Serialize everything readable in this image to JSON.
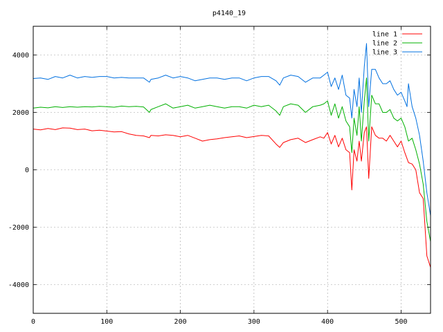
{
  "chart_data": {
    "type": "line",
    "title": "p4140_19",
    "xlabel": "",
    "ylabel": "",
    "xlim": [
      0,
      540
    ],
    "ylim": [
      -5000,
      5000
    ],
    "xticks": [
      0,
      100,
      200,
      300,
      400,
      500
    ],
    "yticks": [
      -4000,
      -2000,
      0,
      2000,
      4000
    ],
    "grid": true,
    "legend": "top-right",
    "series": [
      {
        "name": "line 1",
        "color": "#ff0000",
        "x": [
          0,
          10,
          20,
          30,
          40,
          50,
          60,
          70,
          80,
          90,
          100,
          110,
          120,
          130,
          140,
          150,
          158,
          160,
          170,
          180,
          190,
          200,
          210,
          220,
          230,
          240,
          250,
          260,
          270,
          280,
          290,
          300,
          310,
          320,
          330,
          335,
          340,
          350,
          360,
          370,
          380,
          390,
          395,
          400,
          405,
          410,
          415,
          420,
          425,
          430,
          433,
          436,
          440,
          443,
          446,
          450,
          453,
          456,
          460,
          465,
          470,
          475,
          480,
          485,
          490,
          495,
          500,
          505,
          510,
          515,
          520,
          525,
          530,
          535,
          540
        ],
        "y": [
          1420,
          1390,
          1440,
          1400,
          1460,
          1450,
          1400,
          1420,
          1360,
          1380,
          1350,
          1320,
          1330,
          1250,
          1200,
          1180,
          1120,
          1200,
          1180,
          1220,
          1200,
          1150,
          1200,
          1100,
          1000,
          1050,
          1080,
          1120,
          1150,
          1180,
          1120,
          1160,
          1200,
          1180,
          900,
          780,
          950,
          1050,
          1100,
          950,
          1050,
          1150,
          1100,
          1300,
          900,
          1200,
          800,
          1100,
          700,
          600,
          -700,
          700,
          300,
          1000,
          300,
          1300,
          1500,
          -300,
          1500,
          1200,
          1100,
          1100,
          1000,
          1200,
          1000,
          800,
          1000,
          600,
          250,
          200,
          0,
          -800,
          -1000,
          -3000,
          -3400
        ]
      },
      {
        "name": "line 2",
        "color": "#00b000",
        "x": [
          0,
          10,
          20,
          30,
          40,
          50,
          60,
          70,
          80,
          90,
          100,
          110,
          120,
          130,
          140,
          150,
          158,
          160,
          170,
          180,
          190,
          200,
          210,
          220,
          230,
          240,
          250,
          260,
          270,
          280,
          290,
          300,
          310,
          320,
          330,
          335,
          340,
          350,
          360,
          370,
          380,
          390,
          395,
          400,
          405,
          410,
          415,
          420,
          425,
          430,
          433,
          436,
          440,
          443,
          446,
          450,
          453,
          456,
          460,
          465,
          470,
          475,
          480,
          485,
          490,
          495,
          500,
          505,
          510,
          515,
          520,
          525,
          530,
          535,
          540
        ],
        "y": [
          2150,
          2180,
          2160,
          2200,
          2170,
          2200,
          2180,
          2200,
          2190,
          2210,
          2200,
          2180,
          2220,
          2200,
          2210,
          2190,
          2000,
          2100,
          2200,
          2300,
          2150,
          2200,
          2250,
          2150,
          2200,
          2250,
          2200,
          2150,
          2200,
          2200,
          2150,
          2250,
          2200,
          2250,
          2050,
          1900,
          2200,
          2300,
          2250,
          2000,
          2200,
          2250,
          2300,
          2400,
          1900,
          2300,
          1800,
          2200,
          1700,
          1500,
          600,
          1800,
          1200,
          2200,
          1000,
          2400,
          3200,
          1000,
          2600,
          2300,
          2300,
          2000,
          2000,
          2100,
          1800,
          1700,
          1800,
          1500,
          1000,
          1100,
          700,
          200,
          -500,
          -1800,
          -2500
        ]
      },
      {
        "name": "line 3",
        "color": "#0070e0",
        "x": [
          0,
          10,
          20,
          30,
          40,
          50,
          60,
          70,
          80,
          90,
          100,
          110,
          120,
          130,
          140,
          150,
          158,
          160,
          170,
          180,
          190,
          200,
          210,
          220,
          230,
          240,
          250,
          260,
          270,
          280,
          290,
          300,
          310,
          320,
          330,
          335,
          340,
          350,
          360,
          370,
          380,
          390,
          395,
          400,
          405,
          410,
          415,
          420,
          425,
          430,
          433,
          436,
          440,
          443,
          446,
          450,
          453,
          456,
          460,
          465,
          470,
          475,
          480,
          485,
          490,
          495,
          500,
          505,
          508,
          510,
          515,
          520,
          525,
          530,
          535,
          540
        ],
        "y": [
          3180,
          3200,
          3150,
          3250,
          3200,
          3300,
          3200,
          3250,
          3220,
          3250,
          3250,
          3200,
          3220,
          3200,
          3200,
          3200,
          3050,
          3150,
          3200,
          3300,
          3200,
          3250,
          3200,
          3100,
          3150,
          3200,
          3200,
          3150,
          3200,
          3200,
          3100,
          3200,
          3250,
          3250,
          3100,
          2950,
          3200,
          3300,
          3250,
          3050,
          3200,
          3200,
          3300,
          3400,
          2900,
          3200,
          2800,
          3300,
          2600,
          2500,
          1800,
          2800,
          2200,
          3200,
          2000,
          3600,
          4400,
          2200,
          3500,
          3500,
          3200,
          3000,
          3000,
          3100,
          2800,
          2600,
          2700,
          2400,
          2200,
          3000,
          2200,
          1800,
          1200,
          300,
          -800,
          -1600
        ]
      }
    ]
  }
}
